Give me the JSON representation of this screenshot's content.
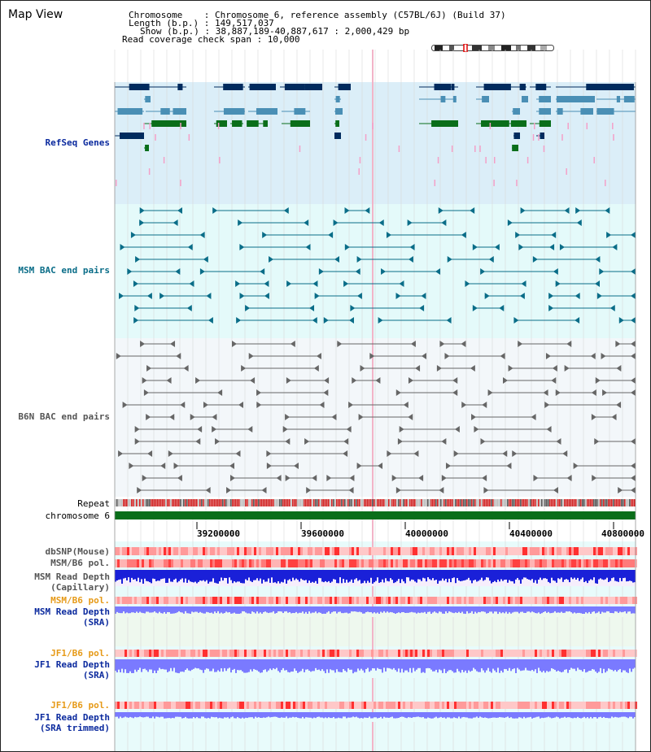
{
  "header": {
    "title": "Map View",
    "chromosome_line": "Chromosome    : Chromosome 6, reference assembly (C57BL/6J) (Build 37)",
    "length_line": "Length (b.p.) : 149,517,037",
    "show_line": "Show (b.p.) : 38,887,189-40,887,617 : 2,000,429 bp",
    "read_coverage_line": "Read coverage check span : 10,000"
  },
  "tracks": {
    "refseq": "RefSeq Genes",
    "msm_bac": "MSM BAC end pairs",
    "b6n_bac": "B6N BAC end pairs",
    "repeat": "Repeat",
    "chromosome": "chromosome 6",
    "dbsnp": "dbSNP(Mouse)",
    "msm_b6_pol_1": "MSM/B6 pol.",
    "msm_read_depth_cap_1": "MSM Read Depth",
    "msm_read_depth_cap_2": "(Capillary)",
    "msm_b6_pol_2": "MSM/B6 pol.",
    "msm_read_depth_sra_1": "MSM Read Depth",
    "msm_read_depth_sra_2": "(SRA)",
    "jf1_b6_pol_1": "JF1/B6 pol.",
    "jf1_read_depth_sra_1": "JF1 Read Depth",
    "jf1_read_depth_sra_2": "(SRA)",
    "jf1_b6_pol_2": "JF1/B6 pol.",
    "jf1_read_depth_trim_1": "JF1 Read Depth",
    "jf1_read_depth_trim_2": "(SRA trimmed)"
  },
  "axis": {
    "ticks": [
      "39200000",
      "39600000",
      "40000000",
      "40400000",
      "40800000"
    ]
  },
  "colors": {
    "refseq_bg": "#dbeef8",
    "bac_bg": "#e4fafa",
    "b6n_bg": "#f3f7fa",
    "gene_dark": "#002b5e",
    "gene_mid": "#4a8fb5",
    "gene_green": "#0a6e1a",
    "chromosome_bar": "#0a6e1a",
    "snp": "#ff5050",
    "depth_blue": "#1a20d8",
    "depth_light": "#7a7aff"
  }
}
